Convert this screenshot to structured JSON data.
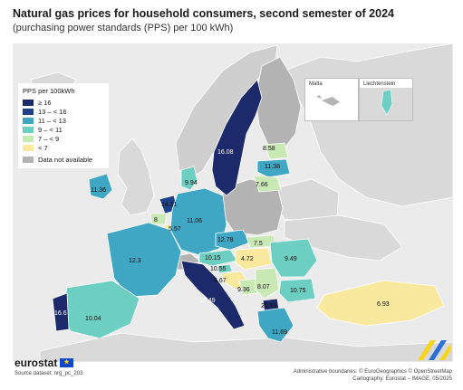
{
  "title": "Natural gas prices for household consumers, second semester of 2024",
  "subtitle": "(purchasing power standards (PPS) per 100 kWh)",
  "legend": {
    "title": "PPS per 100kWh",
    "classes": [
      {
        "label": "≥ 16",
        "color": "#1c2a6b"
      },
      {
        "label": "13 – < 16",
        "color": "#1f3f8a"
      },
      {
        "label": "11 – < 13",
        "color": "#3fa6c4"
      },
      {
        "label": "9 – < 11",
        "color": "#6ccfc1"
      },
      {
        "label": "7 – < 9",
        "color": "#c8e8b4"
      },
      {
        "label": "< 7",
        "color": "#f8e99e"
      }
    ],
    "na_label": "Data not available",
    "na_color": "#b3b3b3"
  },
  "insets": {
    "malta": "Malta",
    "liechtenstein": "Liechtenstein"
  },
  "values": {
    "sweden": "16.08",
    "estonia": "8.58",
    "latvia": "11.38",
    "lithuania": "7.66",
    "denmark": "9.94",
    "ireland": "11.36",
    "netherlands": "14.21",
    "belgium": "8",
    "luxembourg": "5.57",
    "germany": "11.06",
    "czechia": "12.78",
    "slovakia": "7.5",
    "austria": "10.15",
    "slovenia": "10.55",
    "croatia": "6.67",
    "hungary": "4.72",
    "romania": "9.49",
    "bosnia": "9.36",
    "serbia": "8.07",
    "bulgaria": "10.75",
    "france": "12.3",
    "italy": "16.49",
    "north_macedonia": "20.53",
    "greece": "11.69",
    "portugal": "16.6",
    "spain": "10.04",
    "turkey": "6.93"
  },
  "footer": {
    "logo": "eurostat",
    "source": "Source dataset: nrg_pc_203",
    "admin": "Administrative boundaries: © EuroGeographics © OpenStreetMap",
    "cartography": "Cartography: Eurostat – IMAGE, 05/2025"
  }
}
